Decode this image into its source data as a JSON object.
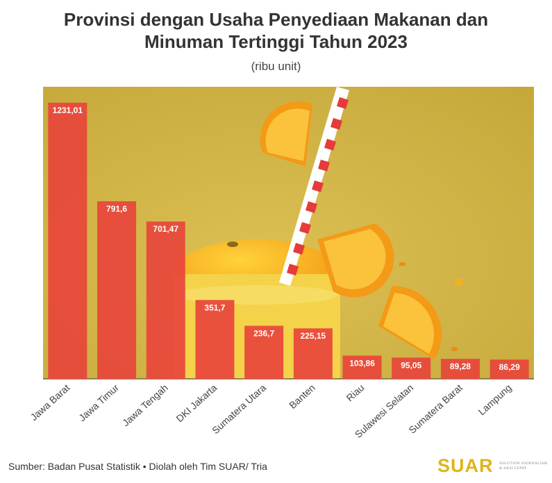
{
  "header": {
    "title_line1": "Provinsi dengan Usaha Penyediaan Makanan dan",
    "title_line2": "Minuman Tertinggi Tahun 2023",
    "subtitle": "(ribu unit)"
  },
  "footer": {
    "source": "Sumber: Badan Pusat Statistik • Diolah oleh Tim SUAR/ Tria",
    "logo_word": "SUAR",
    "logo_tag_line1": "SOLUTION JOURNALISM",
    "logo_tag_line2": "& AKSI CEPAT"
  },
  "colors": {
    "bar": "#e8453c",
    "background_photo": "#d2b446",
    "label_text": "#ffffff"
  },
  "chart_data": {
    "type": "bar",
    "title": "Provinsi dengan Usaha Penyediaan Makanan dan Minuman Tertinggi Tahun 2023",
    "subtitle": "(ribu unit)",
    "categories": [
      "Jawa Barat",
      "Jawa Timur",
      "Jawa Tengah",
      "DKI Jakarta",
      "Sumatera Utara",
      "Banten",
      "Riau",
      "Sulawesi Selatan",
      "Sumatera Barat",
      "Lampung"
    ],
    "values": [
      1231.01,
      791.6,
      701.47,
      351.7,
      236.7,
      225.15,
      103.86,
      95.05,
      89.28,
      86.29
    ],
    "value_labels": [
      "1231,01",
      "791,6",
      "701,47",
      "351,7",
      "236,7",
      "225,15",
      "103,86",
      "95,05",
      "89,28",
      "86,29"
    ],
    "ylim": [
      0,
      1231.01
    ],
    "grid": false,
    "legend": "none"
  }
}
